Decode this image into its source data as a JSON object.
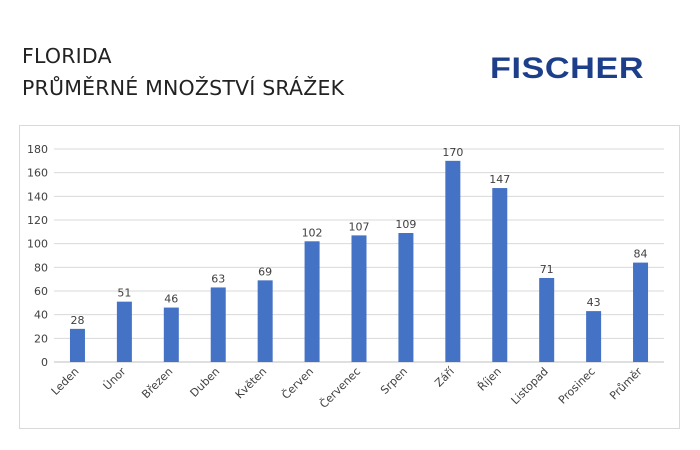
{
  "header": {
    "title_line1": "FLORIDA",
    "title_line2": "PRŮMĚRNÉ MNOŽSTVÍ SRÁŽEK",
    "logo_text": "FISCHER",
    "logo_color": "#1d3f8a"
  },
  "chart_data": {
    "type": "bar",
    "title": "",
    "xlabel": "",
    "ylabel": "",
    "categories": [
      "Leden",
      "Únor",
      "Březen",
      "Duben",
      "Květen",
      "Červen",
      "Červenec",
      "Srpen",
      "Září",
      "Říjen",
      "Listopad",
      "Prosinec",
      "Průměr"
    ],
    "values": [
      28,
      51,
      46,
      63,
      69,
      102,
      107,
      109,
      170,
      147,
      71,
      43,
      84
    ],
    "ylim": [
      0,
      180
    ],
    "yticks": [
      0,
      20,
      40,
      60,
      80,
      100,
      120,
      140,
      160,
      180
    ],
    "grid": true,
    "legend": "none",
    "data_labels": true,
    "bar_color": "#4472c4",
    "grid_color": "#d9d9d9",
    "axis_color": "#bfbfbf"
  }
}
